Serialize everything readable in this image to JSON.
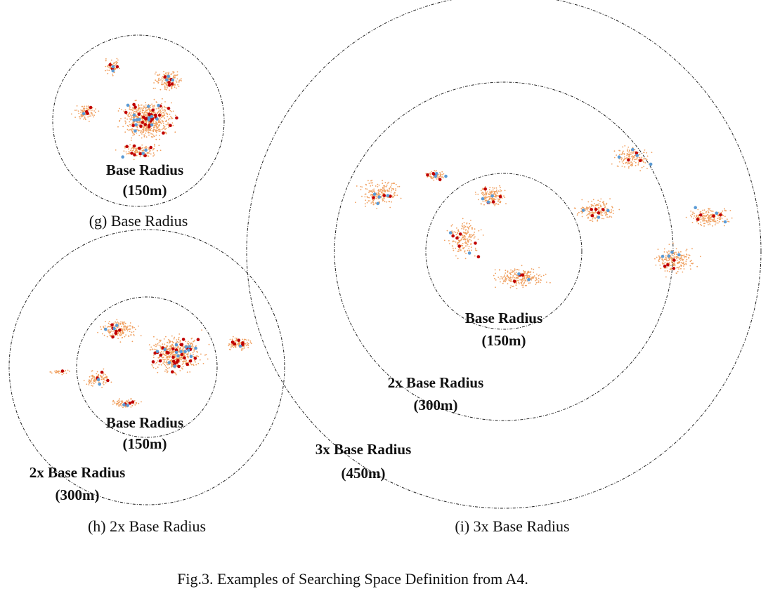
{
  "figure_caption": "Fig.3. Examples of Searching Space Definition from A4.",
  "panels": {
    "g": {
      "caption": "(g) Base Radius",
      "labels": [
        {
          "line1": "Base Radius",
          "line2": "(150m)"
        }
      ]
    },
    "h": {
      "caption": "(h) 2x Base Radius",
      "labels": [
        {
          "line1": "Base Radius",
          "line2": "(150m)"
        },
        {
          "line1": "2x Base Radius",
          "line2": "(300m)"
        }
      ]
    },
    "i": {
      "caption": "(i) 3x Base Radius",
      "labels": [
        {
          "line1": "Base Radius",
          "line2": "(150m)"
        },
        {
          "line1": "2x Base Radius",
          "line2": "(300m)"
        },
        {
          "line1": "3x Base Radius",
          "line2": "(450m)"
        }
      ]
    }
  },
  "colors": {
    "orange_points": "#f0a060",
    "red_points": "#c00000",
    "blue_points": "#5b9bd5",
    "ring_stroke": "#222222"
  }
}
